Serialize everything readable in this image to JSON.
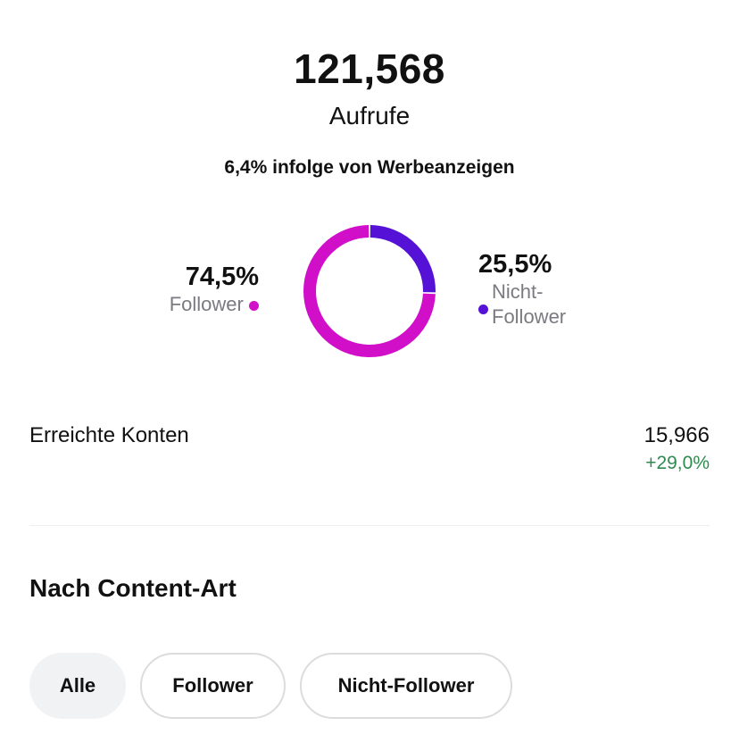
{
  "summary": {
    "total": "121,568",
    "total_label": "Aufrufe",
    "ads_note": "6,4% infolge von Werbeanzeigen"
  },
  "colors": {
    "follower": "#d10fc9",
    "non_follower": "#5512d6",
    "positive": "#2e8b4f"
  },
  "chart_data": {
    "type": "pie",
    "variant": "donut",
    "series": [
      {
        "name": "Follower",
        "value": 74.5,
        "label": "74,5%"
      },
      {
        "name": "Nicht-Follower",
        "value": 25.5,
        "label": "25,5%"
      }
    ]
  },
  "legend": {
    "follower": {
      "pct": "74,5%",
      "label": "Follower"
    },
    "non_follower": {
      "pct": "25,5%",
      "label_line1": "Nicht-",
      "label_line2": "Follower"
    }
  },
  "reach": {
    "label": "Erreichte Konten",
    "value": "15,966",
    "delta": "+29,0%"
  },
  "content_type": {
    "title": "Nach Content-Art",
    "filters": [
      "Alle",
      "Follower",
      "Nicht-Follower"
    ],
    "selected": "Alle"
  }
}
